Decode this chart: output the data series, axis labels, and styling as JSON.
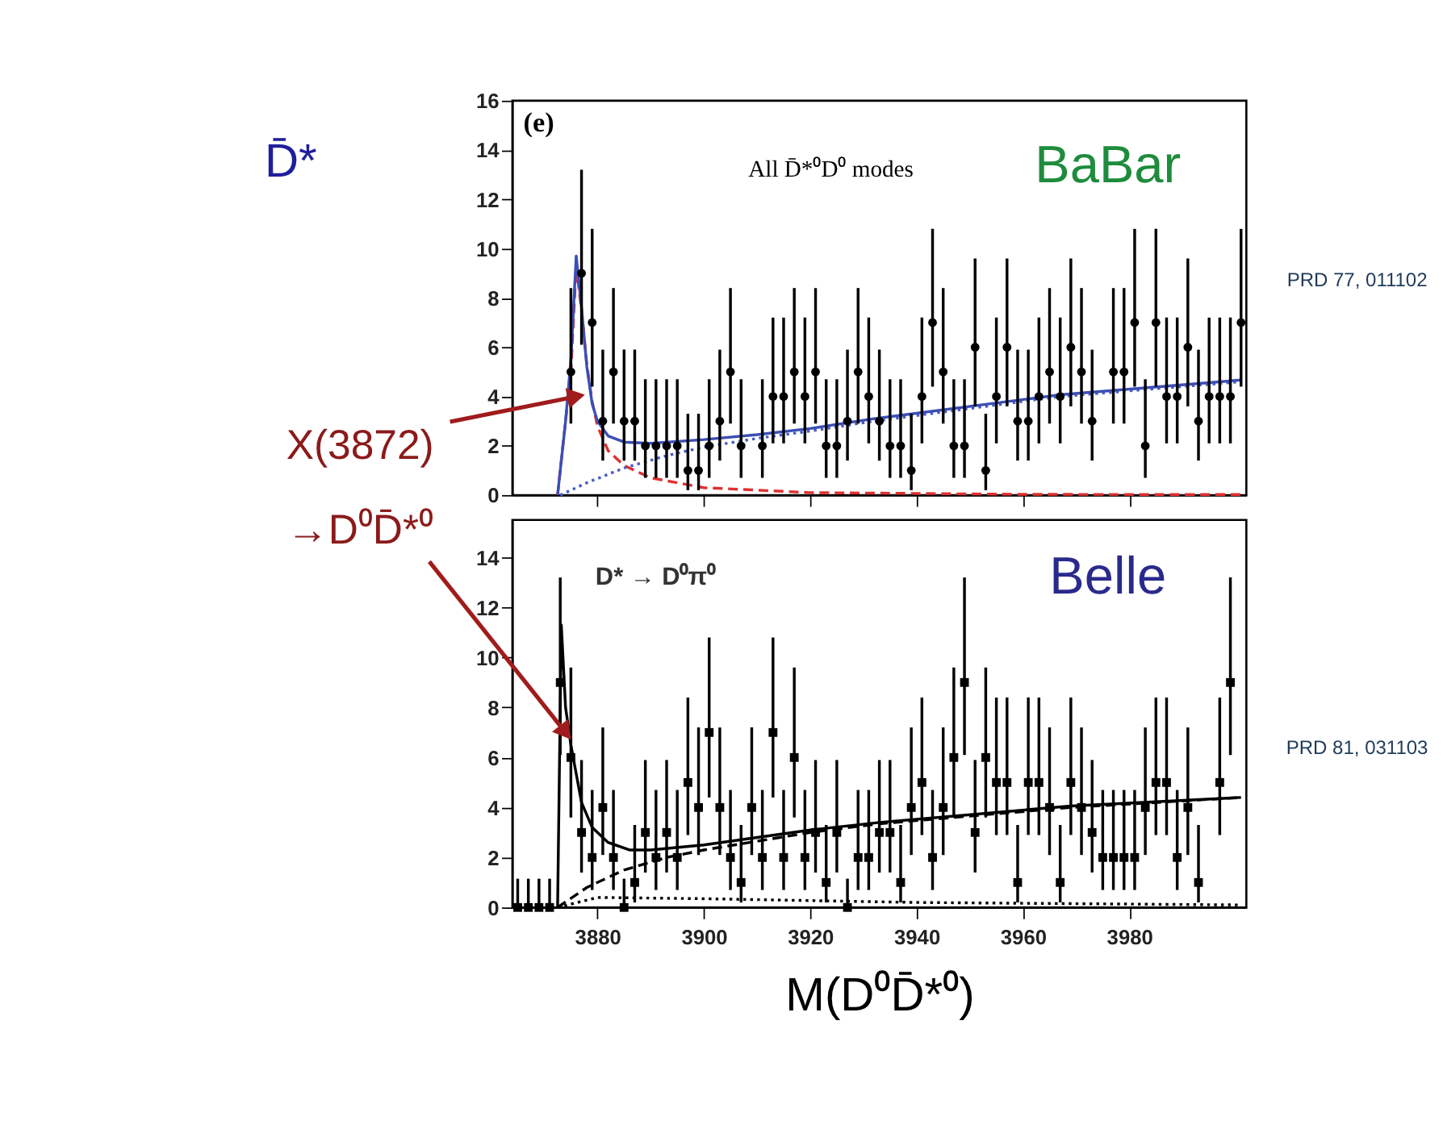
{
  "chart_data": [
    {
      "type": "scatter",
      "xlim": [
        3864,
        4002
      ],
      "ylim": [
        0,
        16
      ],
      "xticks": [
        3880,
        3900,
        3920,
        3940,
        3960,
        3980
      ],
      "yticks": [
        0,
        2,
        4,
        6,
        8,
        10,
        12,
        14,
        16
      ],
      "tick_labels": "y",
      "annotations": [
        "D̄*",
        "(e)",
        "All D̄*⁰D⁰ modes",
        "BaBar",
        "PRD 77, 011102",
        {
          "text": "X(3872)",
          "x": 3876,
          "y": 4
        }
      ],
      "series": [
        {
          "type": "line",
          "color": "#e03030",
          "line_style": "dashed",
          "x": [
            3872.5,
            3875,
            3876,
            3877,
            3878,
            3879,
            3880,
            3882,
            3885,
            3890,
            3900,
            3920,
            3960,
            4001
          ],
          "values": [
            0,
            5,
            9.3,
            7.5,
            5.3,
            3.8,
            2.8,
            1.8,
            1.2,
            0.7,
            0.3,
            0.1,
            0.03,
            0.02
          ]
        },
        {
          "type": "line",
          "color": "#4a5cc0",
          "line_style": "dotted",
          "x": [
            3873,
            3878,
            3885,
            3893,
            3900,
            3910,
            3920,
            3932,
            3967,
            4001
          ],
          "values": [
            0,
            0.5,
            1.1,
            1.6,
            1.95,
            2.3,
            2.6,
            3.0,
            4.0,
            4.6
          ]
        },
        {
          "type": "line",
          "color": "#3a4fb5",
          "line_style": "solid",
          "x": [
            3872.5,
            3874,
            3875,
            3876,
            3877,
            3878,
            3879,
            3880,
            3882,
            3885,
            3890,
            3900,
            3910,
            3920,
            3932,
            3967,
            4001
          ],
          "values": [
            0,
            3,
            5.5,
            9.7,
            7.6,
            5.2,
            3.7,
            3.0,
            2.4,
            2.15,
            2.1,
            2.25,
            2.45,
            2.7,
            3.1,
            4.07,
            4.67
          ]
        },
        {
          "color": "#000000",
          "marker": "circle",
          "x": [
            3875,
            3877,
            3879,
            3881,
            3883,
            3885,
            3887,
            3889,
            3891,
            3893,
            3895,
            3897,
            3899,
            3901,
            3903,
            3905,
            3907,
            3909,
            3911,
            3913,
            3915,
            3917,
            3919,
            3921,
            3923,
            3925,
            3927,
            3929,
            3931,
            3933,
            3935,
            3937,
            3939,
            3941,
            3943,
            3945,
            3947,
            3949,
            3951,
            3953,
            3955,
            3957,
            3959,
            3961,
            3963,
            3965,
            3967,
            3969,
            3971,
            3973,
            3975,
            3977,
            3979,
            3981,
            3983,
            3985,
            3987,
            3989,
            3991,
            3993,
            3995,
            3997,
            3999,
            4001
          ],
          "values": [
            5,
            9,
            7,
            3,
            5,
            3,
            3,
            2,
            2,
            2,
            2,
            1,
            1,
            2,
            3,
            5,
            2,
            null,
            2,
            4,
            4,
            5,
            4,
            5,
            2,
            2,
            3,
            5,
            4,
            3,
            2,
            2,
            1,
            4,
            7,
            5,
            2,
            2,
            6,
            1,
            4,
            6,
            3,
            3,
            4,
            5,
            4,
            6,
            5,
            3,
            null,
            5,
            5,
            7,
            2,
            7,
            4,
            4,
            6,
            3,
            4,
            4,
            4,
            7
          ],
          "errors": [
            [
              2.9,
              8.4
            ],
            [
              6.1,
              13.2
            ],
            [
              4.4,
              10.8
            ],
            [
              1.4,
              5.9
            ],
            [
              2.9,
              8.4
            ],
            [
              1.4,
              5.9
            ],
            [
              1.4,
              5.9
            ],
            [
              0.7,
              4.7
            ],
            [
              0.7,
              4.7
            ],
            [
              0.7,
              4.7
            ],
            [
              0.7,
              4.7
            ],
            [
              0.2,
              3.3
            ],
            [
              0.2,
              3.3
            ],
            [
              0.7,
              4.7
            ],
            [
              1.4,
              5.9
            ],
            [
              2.9,
              8.4
            ],
            [
              0.7,
              4.7
            ],
            null,
            [
              0.7,
              4.7
            ],
            [
              2.1,
              7.2
            ],
            [
              2.1,
              7.2
            ],
            [
              2.9,
              8.4
            ],
            [
              2.1,
              7.2
            ],
            [
              2.9,
              8.4
            ],
            [
              0.7,
              4.7
            ],
            [
              0.7,
              4.7
            ],
            [
              1.4,
              5.9
            ],
            [
              2.9,
              8.4
            ],
            [
              2.1,
              7.2
            ],
            [
              1.4,
              5.9
            ],
            [
              0.7,
              4.7
            ],
            [
              0.7,
              4.7
            ],
            [
              0.2,
              3.3
            ],
            [
              2.1,
              7.2
            ],
            [
              4.4,
              10.8
            ],
            [
              2.9,
              8.4
            ],
            [
              0.7,
              4.7
            ],
            [
              0.7,
              4.7
            ],
            [
              3.6,
              9.6
            ],
            [
              0.2,
              3.3
            ],
            [
              2.1,
              7.2
            ],
            [
              3.6,
              9.6
            ],
            [
              1.4,
              5.9
            ],
            [
              1.4,
              5.9
            ],
            [
              2.1,
              7.2
            ],
            [
              2.9,
              8.4
            ],
            [
              2.1,
              7.2
            ],
            [
              3.6,
              9.6
            ],
            [
              2.9,
              8.4
            ],
            [
              1.4,
              5.9
            ],
            null,
            [
              2.9,
              8.4
            ],
            [
              2.9,
              8.4
            ],
            [
              4.4,
              10.8
            ],
            [
              0.7,
              4.7
            ],
            [
              4.4,
              10.8
            ],
            [
              2.1,
              7.2
            ],
            [
              2.1,
              7.2
            ],
            [
              3.6,
              9.6
            ],
            [
              1.4,
              5.9
            ],
            [
              2.1,
              7.2
            ],
            [
              2.1,
              7.2
            ],
            [
              2.1,
              7.2
            ],
            [
              4.4,
              10.8
            ]
          ]
        }
      ]
    },
    {
      "type": "scatter",
      "xlim": [
        3864,
        4002
      ],
      "ylim": [
        0,
        15.5
      ],
      "xticks": [
        3880,
        3900,
        3920,
        3940,
        3960,
        3980
      ],
      "yticks": [
        0,
        2,
        4,
        6,
        8,
        10,
        12,
        14
      ],
      "xlabel": "M(D⁰D̄*⁰)",
      "annotations": [
        "D* → D⁰π⁰",
        "Belle",
        "PRD 81, 031103",
        {
          "text": "→D⁰D̄*⁰",
          "x": 3874,
          "y": 7
        }
      ],
      "series": [
        {
          "type": "line",
          "color": "#000000",
          "line_style": "dotted",
          "x": [
            3872.5,
            3880,
            3900,
            3940,
            4001
          ],
          "values": [
            0,
            0.4,
            0.35,
            0.2,
            0.1
          ]
        },
        {
          "type": "line",
          "color": "#000000",
          "line_style": "dashed",
          "x": [
            3872.5,
            3878,
            3885,
            3893,
            3900,
            3920,
            3933,
            3969,
            4001
          ],
          "values": [
            0,
            0.8,
            1.5,
            2.0,
            2.3,
            3.0,
            3.35,
            4.0,
            4.4
          ]
        },
        {
          "type": "line",
          "color": "#000000",
          "line_style": "solid",
          "x": [
            3872.5,
            3873.2,
            3874,
            3875,
            3877,
            3879,
            3882,
            3886,
            3890,
            3900,
            3920,
            3933,
            3969,
            4001
          ],
          "values": [
            0,
            11.3,
            8,
            6.5,
            4.2,
            3.2,
            2.6,
            2.3,
            2.3,
            2.5,
            3.1,
            3.4,
            4.06,
            4.4
          ]
        },
        {
          "color": "#000000",
          "marker": "square",
          "x": [
            3865,
            3867,
            3869,
            3871,
            3873,
            3875,
            3877,
            3879,
            3881,
            3883,
            3885,
            3887,
            3889,
            3891,
            3893,
            3895,
            3897,
            3899,
            3901,
            3903,
            3905,
            3907,
            3909,
            3911,
            3913,
            3915,
            3917,
            3919,
            3921,
            3923,
            3925,
            3927,
            3929,
            3931,
            3933,
            3935,
            3937,
            3939,
            3941,
            3943,
            3945,
            3947,
            3949,
            3951,
            3953,
            3955,
            3957,
            3959,
            3961,
            3963,
            3965,
            3967,
            3969,
            3971,
            3973,
            3975,
            3977,
            3979,
            3981,
            3983,
            3985,
            3987,
            3989,
            3991,
            3993,
            3995,
            3997,
            3999
          ],
          "values": [
            0,
            0,
            0,
            0,
            9,
            6,
            3,
            2,
            4,
            2,
            0,
            1,
            3,
            2,
            3,
            2,
            5,
            4,
            7,
            4,
            2,
            1,
            4,
            2,
            7,
            2,
            6,
            2,
            3,
            1,
            3,
            0,
            2,
            2,
            3,
            3,
            1,
            4,
            5,
            2,
            4,
            6,
            9,
            3,
            6,
            5,
            5,
            1,
            5,
            5,
            4,
            1,
            5,
            4,
            3,
            2,
            2,
            2,
            2,
            4,
            5,
            5,
            2,
            4,
            1,
            null,
            5,
            9
          ],
          "errors": [
            [
              0,
              1.15
            ],
            [
              0,
              1.15
            ],
            [
              0,
              1.15
            ],
            [
              0,
              1.15
            ],
            [
              6.1,
              13.2
            ],
            [
              3.6,
              9.6
            ],
            [
              1.4,
              5.9
            ],
            [
              0.7,
              4.7
            ],
            [
              2.1,
              7.2
            ],
            [
              0.7,
              4.7
            ],
            [
              0,
              1.15
            ],
            [
              0.2,
              3.3
            ],
            [
              1.4,
              5.9
            ],
            [
              0.7,
              4.7
            ],
            [
              1.4,
              5.9
            ],
            [
              0.7,
              4.7
            ],
            [
              2.9,
              8.4
            ],
            [
              2.1,
              7.2
            ],
            [
              4.4,
              10.8
            ],
            [
              2.1,
              7.2
            ],
            [
              0.7,
              4.7
            ],
            [
              0.2,
              3.3
            ],
            [
              2.1,
              7.2
            ],
            [
              0.7,
              4.7
            ],
            [
              4.4,
              10.8
            ],
            [
              0.7,
              4.7
            ],
            [
              3.6,
              9.6
            ],
            [
              0.7,
              4.7
            ],
            [
              1.4,
              5.9
            ],
            [
              0.2,
              3.3
            ],
            [
              1.4,
              5.9
            ],
            [
              0,
              1.15
            ],
            [
              0.7,
              4.7
            ],
            [
              0.7,
              4.7
            ],
            [
              1.4,
              5.9
            ],
            [
              1.4,
              5.9
            ],
            [
              0.2,
              3.3
            ],
            [
              2.1,
              7.2
            ],
            [
              2.9,
              8.4
            ],
            [
              0.7,
              4.7
            ],
            [
              2.1,
              7.2
            ],
            [
              3.6,
              9.6
            ],
            [
              6.1,
              13.2
            ],
            [
              1.4,
              5.9
            ],
            [
              3.6,
              9.6
            ],
            [
              2.9,
              8.4
            ],
            [
              2.9,
              8.4
            ],
            [
              0.2,
              3.3
            ],
            [
              2.9,
              8.4
            ],
            [
              2.9,
              8.4
            ],
            [
              2.1,
              7.2
            ],
            [
              0.2,
              3.3
            ],
            [
              2.9,
              8.4
            ],
            [
              2.1,
              7.2
            ],
            [
              1.4,
              5.9
            ],
            [
              0.7,
              4.7
            ],
            [
              0.7,
              4.7
            ],
            [
              0.7,
              4.7
            ],
            [
              0.7,
              4.7
            ],
            [
              2.1,
              7.2
            ],
            [
              2.9,
              8.4
            ],
            [
              2.9,
              8.4
            ],
            [
              0.7,
              4.7
            ],
            [
              2.1,
              7.2
            ],
            [
              0.2,
              3.3
            ],
            null,
            [
              2.9,
              8.4
            ],
            [
              6.1,
              13.2
            ]
          ]
        }
      ]
    }
  ]
}
